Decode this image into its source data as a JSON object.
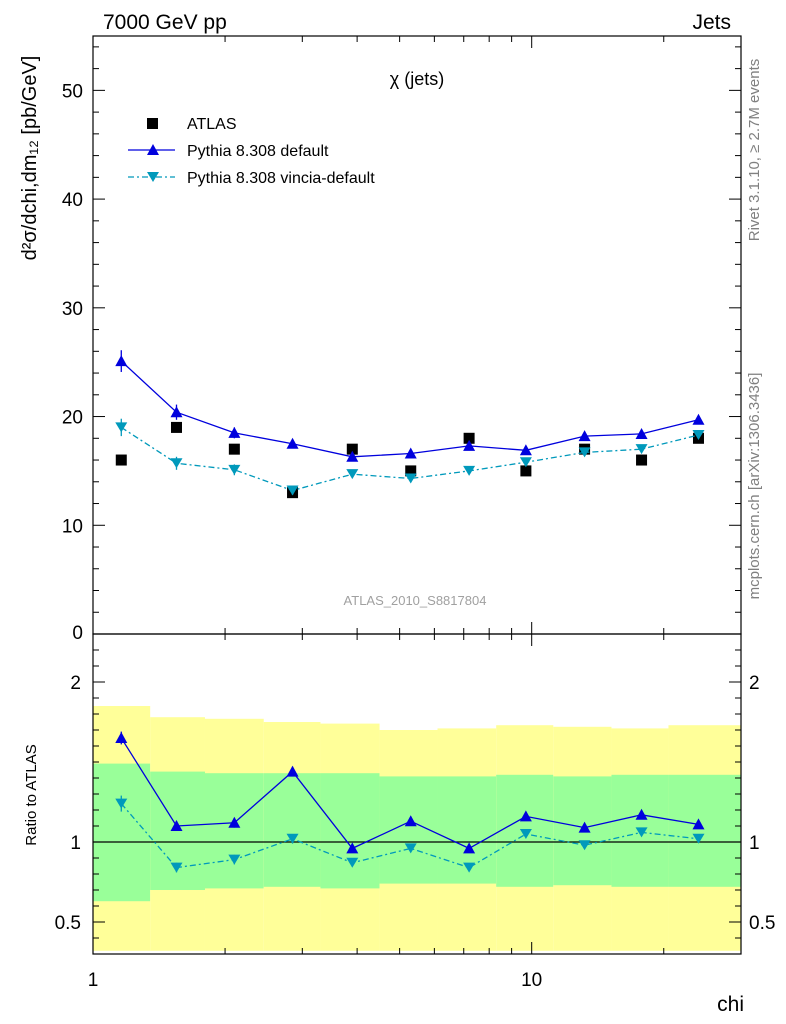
{
  "header": {
    "left": "7000 GeV pp",
    "right": "Jets"
  },
  "side": {
    "rivet": "Rivet 3.1.10, ≥ 2.7M events",
    "mcplots": "mcplots.cern.ch [arXiv:1306.3436]"
  },
  "chart_data": [
    {
      "type": "scatter",
      "title": "χ (jets)",
      "ylabel": "d²σ/dchi,dm₁₂ [pb/GeV]",
      "xlabel": "chi",
      "watermark": "ATLAS_2010_S8817804",
      "x_scale": "log",
      "xlim": [
        1,
        30
      ],
      "ylim": [
        0,
        55
      ],
      "yticks": [
        0,
        10,
        20,
        30,
        40,
        50
      ],
      "xticks": [
        1,
        10
      ],
      "legend_position": "top-left",
      "x": [
        1.16,
        1.55,
        2.1,
        2.85,
        3.9,
        5.3,
        7.2,
        9.7,
        13.2,
        17.8,
        24.0
      ],
      "series": [
        {
          "name": "ATLAS",
          "style": "square-marker",
          "color": "#000000",
          "values": [
            16.0,
            19.0,
            17.0,
            13.0,
            17.0,
            15.0,
            18.0,
            15.0,
            17.0,
            16.0,
            18.0
          ]
        },
        {
          "name": "Pythia 8.308 default",
          "style": "solid-triangle-up",
          "color": "#0000dd",
          "values": [
            25.1,
            20.4,
            18.5,
            17.5,
            16.3,
            16.6,
            17.3,
            16.9,
            18.2,
            18.4,
            19.7
          ],
          "errors": [
            1.0,
            0.7,
            0.5,
            0.4,
            0.3,
            0.3,
            0.3,
            0.3,
            0.3,
            0.3,
            0.3
          ]
        },
        {
          "name": "Pythia 8.308 vincia-default",
          "style": "dashdot-triangle-down",
          "color": "#0099bb",
          "values": [
            19.0,
            15.7,
            15.1,
            13.2,
            14.7,
            14.3,
            15.0,
            15.8,
            16.7,
            17.0,
            18.3
          ],
          "errors": [
            0.8,
            0.6,
            0.5,
            0.4,
            0.3,
            0.3,
            0.3,
            0.3,
            0.3,
            0.3,
            0.3
          ]
        }
      ]
    },
    {
      "type": "scatter",
      "ylabel": "Ratio to ATLAS",
      "xlabel": "chi",
      "x_scale": "log",
      "xlim": [
        1,
        30
      ],
      "ylim": [
        0.3,
        2.3
      ],
      "yticks": [
        0.5,
        1,
        2
      ],
      "xticks": [
        1,
        10
      ],
      "reference_line": 1,
      "bin_edges": [
        1.0,
        1.35,
        1.8,
        2.45,
        3.3,
        4.5,
        6.1,
        8.3,
        11.2,
        15.2,
        20.5,
        30.0
      ],
      "bands": {
        "yellow_color": "#ffff99",
        "green_color": "#99ff99",
        "yellow_low": [
          0.32,
          0.32,
          0.32,
          0.32,
          0.32,
          0.32,
          0.32,
          0.32,
          0.32,
          0.32,
          0.32
        ],
        "yellow_high": [
          1.85,
          1.78,
          1.77,
          1.75,
          1.74,
          1.7,
          1.71,
          1.73,
          1.72,
          1.71,
          1.73
        ],
        "green_low": [
          0.63,
          0.7,
          0.71,
          0.72,
          0.71,
          0.74,
          0.74,
          0.72,
          0.73,
          0.72,
          0.72
        ],
        "green_high": [
          1.49,
          1.44,
          1.43,
          1.43,
          1.43,
          1.41,
          1.41,
          1.42,
          1.41,
          1.42,
          1.42
        ]
      },
      "x": [
        1.16,
        1.55,
        2.1,
        2.85,
        3.9,
        5.3,
        7.2,
        9.7,
        13.2,
        17.8,
        24.0
      ],
      "series": [
        {
          "name": "Pythia 8.308 default",
          "color": "#0000dd",
          "values": [
            1.65,
            1.1,
            1.12,
            1.44,
            0.96,
            1.13,
            0.96,
            1.16,
            1.09,
            1.17,
            1.11
          ],
          "errors": [
            0.04,
            0.03,
            0.03,
            0.03,
            0.02,
            0.02,
            0.02,
            0.02,
            0.02,
            0.02,
            0.02
          ]
        },
        {
          "name": "Pythia 8.308 vincia-default",
          "color": "#0099bb",
          "values": [
            1.24,
            0.84,
            0.89,
            1.02,
            0.87,
            0.96,
            0.84,
            1.05,
            0.98,
            1.06,
            1.02
          ],
          "errors": [
            0.05,
            0.03,
            0.03,
            0.03,
            0.02,
            0.02,
            0.02,
            0.02,
            0.02,
            0.02,
            0.02
          ]
        }
      ]
    }
  ]
}
